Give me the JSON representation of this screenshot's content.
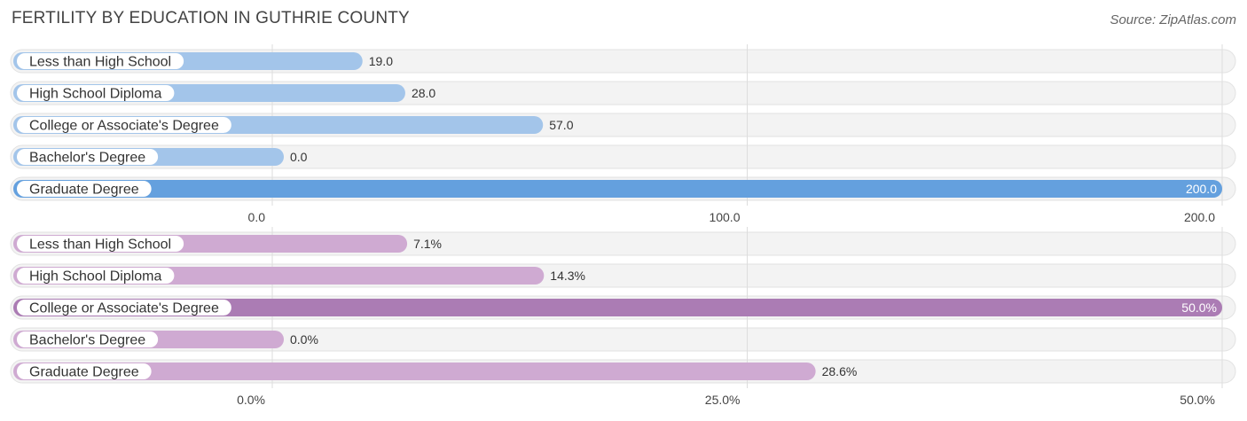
{
  "title": "FERTILITY BY EDUCATION IN GUTHRIE COUNTY",
  "source": "Source: ZipAtlas.com",
  "colors": {
    "blue_light": "#a3c5ea",
    "blue_strong": "#64a0de",
    "purple_light": "#cfaad2",
    "purple_strong": "#ab7cb4",
    "row_bg": "#f2f2f2",
    "grid": "#dddddd"
  },
  "chart_data": [
    {
      "type": "bar",
      "orientation": "horizontal",
      "categories": [
        "Less than High School",
        "High School Diploma",
        "College or Associate's Degree",
        "Bachelor's Degree",
        "Graduate Degree"
      ],
      "values": [
        19.0,
        28.0,
        57.0,
        0.0,
        200.0
      ],
      "value_labels": [
        "19.0",
        "28.0",
        "57.0",
        "0.0",
        "200.0"
      ],
      "xlim": [
        0,
        200
      ],
      "ticks": [
        0,
        100,
        200
      ],
      "tick_labels": [
        "0.0",
        "100.0",
        "200.0"
      ],
      "palette": "blue"
    },
    {
      "type": "bar",
      "orientation": "horizontal",
      "categories": [
        "Less than High School",
        "High School Diploma",
        "College or Associate's Degree",
        "Bachelor's Degree",
        "Graduate Degree"
      ],
      "values": [
        7.1,
        14.3,
        50.0,
        0.0,
        28.6
      ],
      "value_labels": [
        "7.1%",
        "14.3%",
        "50.0%",
        "0.0%",
        "28.6%"
      ],
      "xlim": [
        0,
        50
      ],
      "ticks": [
        0,
        25,
        50
      ],
      "tick_labels": [
        "0.0%",
        "25.0%",
        "50.0%"
      ],
      "palette": "purple"
    }
  ]
}
